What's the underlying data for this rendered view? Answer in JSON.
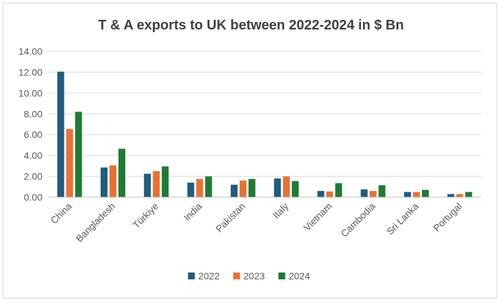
{
  "chart_data": {
    "type": "bar",
    "title": "T & A exports to UK between 2022-2024 in $ Bn",
    "xlabel": "",
    "ylabel": "",
    "ylim": [
      0,
      14
    ],
    "yticks": [
      "0.00",
      "2.00",
      "4.00",
      "6.00",
      "8.00",
      "10.00",
      "12.00",
      "14.00"
    ],
    "grid": true,
    "legend_position": "bottom",
    "categories": [
      "China",
      "Bangladesh",
      "Türkiye",
      "India",
      "Pakistan",
      "Italy",
      "Vietnam",
      "Cambodia",
      "Sri Lanka",
      "Portugal"
    ],
    "series": [
      {
        "name": "2022",
        "color": "#1f5c7f",
        "values": [
          12.05,
          2.85,
          2.25,
          1.4,
          1.2,
          1.8,
          0.6,
          0.75,
          0.5,
          0.3
        ]
      },
      {
        "name": "2023",
        "color": "#e97132",
        "values": [
          6.55,
          3.05,
          2.5,
          1.75,
          1.6,
          2.0,
          0.55,
          0.6,
          0.5,
          0.3
        ]
      },
      {
        "name": "2024",
        "color": "#1e7b34",
        "values": [
          8.2,
          4.65,
          2.95,
          2.0,
          1.75,
          1.55,
          1.35,
          1.15,
          0.7,
          0.5
        ]
      }
    ]
  }
}
